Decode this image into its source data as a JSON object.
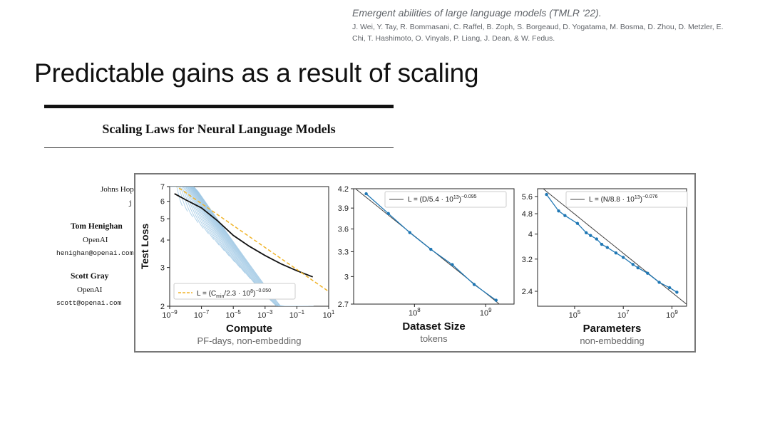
{
  "citation": {
    "title": "Emergent abilities of large language models (TMLR '22).",
    "authors_line1": "J. Wei, Y. Tay, R. Bommasani, C. Raffel, B. Zoph, S. Borgeaud, D. Yogatama, M. Bosma, D. Zhou, D. Metzler, E.",
    "authors_line2": "Chi, T. Hashimoto, O. Vinyals, P. Liang, J. Dean, & W. Fedus."
  },
  "slide_title": "Predictable gains as a result of scaling",
  "paper": {
    "title": "Scaling Laws for Neural Language Models",
    "affil_partial": "Johns Hop",
    "email_partial": "j",
    "authors": [
      {
        "name": "Tom Henighan",
        "org": "OpenAI",
        "email": "henighan@openai.com"
      },
      {
        "name": "Scott Gray",
        "org": "OpenAI",
        "email": "scott@openai.com"
      }
    ]
  },
  "colors": {
    "series": "#1f77b4",
    "fit_line": "#444444",
    "compute_fit": "#f0b429",
    "curves": "#9ec7e3"
  },
  "chart_data": [
    {
      "type": "line",
      "title": "",
      "xlabel": "Compute",
      "xsublabel": "PF-days, non-embedding",
      "ylabel": "Test Loss",
      "xscale": "log",
      "yscale": "log",
      "xlim": [
        1e-09,
        10
      ],
      "ylim": [
        2,
        7
      ],
      "xticks": [
        {
          "v": 1e-09,
          "e": "−9"
        },
        {
          "v": 1e-07,
          "e": "−7"
        },
        {
          "v": 1e-05,
          "e": "−5"
        },
        {
          "v": 0.001,
          "e": "−3"
        },
        {
          "v": 0.1,
          "e": "−1"
        },
        {
          "v": 10,
          "e": "1"
        }
      ],
      "yticks": [
        2,
        3,
        4,
        5,
        6,
        7
      ],
      "frontier": {
        "x": [
          2e-09,
          1e-08,
          1e-07,
          1e-06,
          1e-05,
          0.0001,
          0.001,
          0.01,
          0.1,
          1
        ],
        "y": [
          6.5,
          6.1,
          5.6,
          4.9,
          4.2,
          3.75,
          3.4,
          3.12,
          2.9,
          2.72
        ]
      },
      "fit": {
        "legend": "L = (C",
        "legend_sub": "min",
        "legend_tail": "/2.3 · 10",
        "legend_exp": "8",
        "legend_close": ")",
        "legend_pow": "−0.050",
        "exponent": -0.05,
        "scale": 230000000.0
      },
      "legend_loc": "lower-left"
    },
    {
      "type": "line",
      "title": "",
      "xlabel": "Dataset Size",
      "xsublabel": "tokens",
      "ylabel": "",
      "xscale": "log",
      "yscale": "log",
      "xlim": [
        14000000.0,
        2500000000.0
      ],
      "ylim": [
        2.7,
        4.2
      ],
      "xticks": [
        {
          "v": 100000000.0,
          "e": "8"
        },
        {
          "v": 1000000000.0,
          "e": "9"
        }
      ],
      "yticks": [
        2.7,
        3.0,
        3.3,
        3.6,
        3.9,
        4.2
      ],
      "x": [
        21000000.0,
        43000000.0,
        86000000.0,
        170000000.0,
        340000000.0,
        690000000.0,
        1400000000.0
      ],
      "y": [
        4.12,
        3.82,
        3.55,
        3.33,
        3.14,
        2.91,
        2.74
      ],
      "fit": {
        "legend": "L = (D/5.4 · 10",
        "legend_exp": "13",
        "legend_close": ")",
        "legend_pow": "−0.095",
        "exponent": -0.095,
        "scale": 54000000000000.0
      },
      "legend_loc": "top-right"
    },
    {
      "type": "line",
      "title": "",
      "xlabel": "Parameters",
      "xsublabel": "non-embedding",
      "ylabel": "",
      "xscale": "log",
      "yscale": "log",
      "xlim": [
        3000,
        4000000000.0
      ],
      "ylim": [
        2.1,
        6.0
      ],
      "xticks": [
        {
          "v": 100000.0,
          "e": "5"
        },
        {
          "v": 10000000.0,
          "e": "7"
        },
        {
          "v": 1000000000.0,
          "e": "9"
        }
      ],
      "yticks": [
        2.4,
        3.2,
        4.0,
        4.8,
        5.6
      ],
      "x": [
        7000.0,
        22000.0,
        40000.0,
        130000.0,
        300000.0,
        450000.0,
        800000.0,
        1300000.0,
        2200000.0,
        5000000.0,
        10000000.0,
        25000000.0,
        40000000.0,
        100000000.0,
        300000000.0,
        800000000.0,
        1600000000.0
      ],
      "y": [
        5.7,
        4.92,
        4.72,
        4.4,
        4.05,
        3.95,
        3.83,
        3.65,
        3.55,
        3.38,
        3.25,
        3.05,
        2.96,
        2.82,
        2.6,
        2.48,
        2.38
      ],
      "fit": {
        "legend": "L = (N/8.8 · 10",
        "legend_exp": "13",
        "legend_close": ")",
        "legend_pow": "−0.076",
        "exponent": -0.076,
        "scale": 88000000000000.0
      },
      "legend_loc": "top-right"
    }
  ]
}
